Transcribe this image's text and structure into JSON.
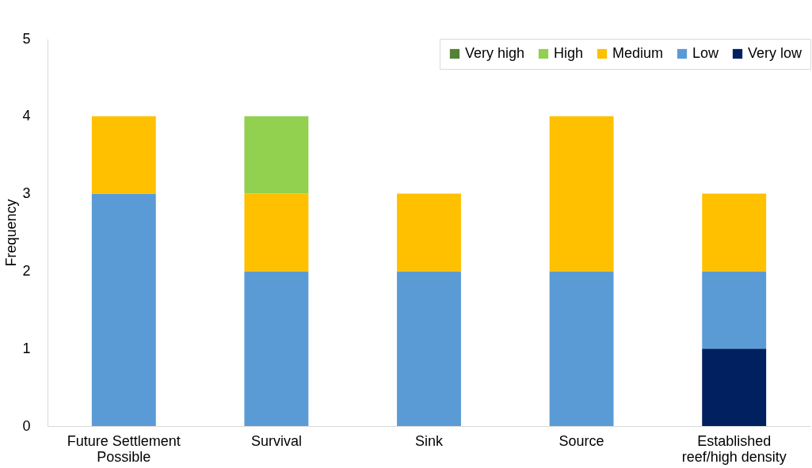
{
  "chart_data": {
    "type": "bar",
    "stacked": true,
    "ylabel": "Frequency",
    "categories": [
      "Future Settlement Possible",
      "Survival",
      "Sink",
      "Source",
      "Established reef/high density"
    ],
    "series": [
      {
        "name": "Very low",
        "color": "#002060",
        "values": [
          0,
          0,
          0,
          0,
          1
        ]
      },
      {
        "name": "Low",
        "color": "#5b9bd5",
        "values": [
          3,
          2,
          2,
          2,
          1
        ]
      },
      {
        "name": "Medium",
        "color": "#ffc000",
        "values": [
          1,
          1,
          1,
          2,
          1
        ]
      },
      {
        "name": "High",
        "color": "#92d050",
        "values": [
          0,
          1,
          0,
          0,
          0
        ]
      },
      {
        "name": "Very high",
        "color": "#548235",
        "values": [
          0,
          0,
          0,
          0,
          0
        ]
      }
    ],
    "ylim": [
      0,
      5
    ],
    "yticks": [
      0,
      1,
      2,
      3,
      4,
      5
    ],
    "grid": false,
    "legend": "top right"
  }
}
